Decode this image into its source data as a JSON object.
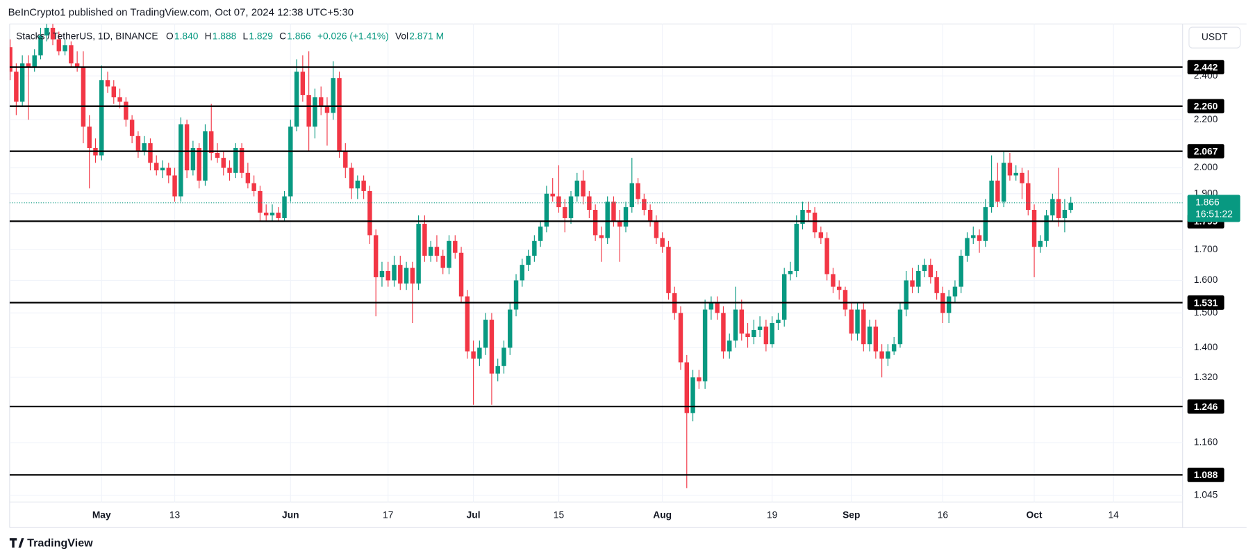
{
  "header": {
    "published": "BeInCrypto1 published on TradingView.com, Oct 07, 2024 12:38 UTC+5:30",
    "footer_brand": "TradingView",
    "currency_button": "USDT"
  },
  "chart_data": {
    "type": "candlestick",
    "symbol": "Stacks / TetherUS, 1D, BINANCE",
    "ohlc_legend": [
      {
        "key": "O",
        "text": "1.840"
      },
      {
        "key": "H",
        "text": "1.888"
      },
      {
        "key": "L",
        "text": "1.829"
      },
      {
        "key": "C",
        "text": "1.866"
      },
      {
        "key": "",
        "text": "+0.026 (+1.41%)"
      },
      {
        "key": "Vol",
        "text": "2.871 M"
      }
    ],
    "up_color": "#089981",
    "down_color": "#f23645",
    "log_scale": true,
    "grid": true,
    "xlim": [
      "2024-04-15",
      "2024-10-26"
    ],
    "xticks": [
      {
        "value": "2024-05-01",
        "label": "May"
      },
      {
        "value": "2024-05-13",
        "label": "13"
      },
      {
        "value": "2024-06-01",
        "label": "Jun"
      },
      {
        "value": "2024-06-17",
        "label": "17"
      },
      {
        "value": "2024-07-01",
        "label": "Jul"
      },
      {
        "value": "2024-07-15",
        "label": "15"
      },
      {
        "value": "2024-08-01",
        "label": "Aug"
      },
      {
        "value": "2024-08-19",
        "label": "19"
      },
      {
        "value": "2024-09-01",
        "label": "Sep"
      },
      {
        "value": "2024-09-16",
        "label": "16"
      },
      {
        "value": "2024-10-01",
        "label": "Oct"
      },
      {
        "value": "2024-10-14",
        "label": "14"
      }
    ],
    "ylim": [
      1.031,
      2.66
    ],
    "yticks": [
      1.045,
      {
        "value": 1.16,
        "label": "1.160"
      },
      {
        "value": 1.32,
        "label": "1.320"
      },
      {
        "value": 1.4,
        "label": "1.400"
      },
      {
        "value": 1.5,
        "label": "1.500"
      },
      {
        "value": 1.6,
        "label": "1.600"
      },
      {
        "value": 1.7,
        "label": "1.700"
      },
      {
        "value": 1.9,
        "label": "1.900"
      },
      {
        "value": 2,
        "label": "2.000"
      },
      {
        "value": 2.2,
        "label": "2.200"
      },
      {
        "value": 2.4,
        "label": "2.400"
      }
    ],
    "levels": [
      2.442,
      {
        "value": 2.26,
        "label": "2.260"
      },
      2.067,
      1.799,
      1.531,
      1.246,
      1.088
    ],
    "last_price": 1.866,
    "countdown": "16:51:22",
    "x": [
      "2024-04-16",
      "2024-04-17",
      "2024-04-18",
      "2024-04-19",
      "2024-04-20",
      "2024-04-21",
      "2024-04-22",
      "2024-04-23",
      "2024-04-24",
      "2024-04-25",
      "2024-04-26",
      "2024-04-27",
      "2024-04-28",
      "2024-04-29",
      "2024-04-30",
      "2024-05-01",
      "2024-05-02",
      "2024-05-03",
      "2024-05-04",
      "2024-05-05",
      "2024-05-06",
      "2024-05-07",
      "2024-05-08",
      "2024-05-09",
      "2024-05-10",
      "2024-05-11",
      "2024-05-12",
      "2024-05-13",
      "2024-05-14",
      "2024-05-15",
      "2024-05-16",
      "2024-05-17",
      "2024-05-18",
      "2024-05-19",
      "2024-05-20",
      "2024-05-21",
      "2024-05-22",
      "2024-05-23",
      "2024-05-24",
      "2024-05-25",
      "2024-05-26",
      "2024-05-27",
      "2024-05-28",
      "2024-05-29",
      "2024-05-30",
      "2024-05-31",
      "2024-06-01",
      "2024-06-02",
      "2024-06-03",
      "2024-06-04",
      "2024-06-05",
      "2024-06-06",
      "2024-06-07",
      "2024-06-08",
      "2024-06-09",
      "2024-06-10",
      "2024-06-11",
      "2024-06-12",
      "2024-06-13",
      "2024-06-14",
      "2024-06-15",
      "2024-06-16",
      "2024-06-17",
      "2024-06-18",
      "2024-06-19",
      "2024-06-20",
      "2024-06-21",
      "2024-06-22",
      "2024-06-23",
      "2024-06-24",
      "2024-06-25",
      "2024-06-26",
      "2024-06-27",
      "2024-06-28",
      "2024-06-29",
      "2024-06-30",
      "2024-07-01",
      "2024-07-02",
      "2024-07-03",
      "2024-07-04",
      "2024-07-05",
      "2024-07-06",
      "2024-07-07",
      "2024-07-08",
      "2024-07-09",
      "2024-07-10",
      "2024-07-11",
      "2024-07-12",
      "2024-07-13",
      "2024-07-14",
      "2024-07-15",
      "2024-07-16",
      "2024-07-17",
      "2024-07-18",
      "2024-07-19",
      "2024-07-20",
      "2024-07-21",
      "2024-07-22",
      "2024-07-23",
      "2024-07-24",
      "2024-07-25",
      "2024-07-26",
      "2024-07-27",
      "2024-07-28",
      "2024-07-29",
      "2024-07-30",
      "2024-07-31",
      "2024-08-01",
      "2024-08-02",
      "2024-08-03",
      "2024-08-04",
      "2024-08-05",
      "2024-08-06",
      "2024-08-07",
      "2024-08-08",
      "2024-08-09",
      "2024-08-10",
      "2024-08-11",
      "2024-08-12",
      "2024-08-13",
      "2024-08-14",
      "2024-08-15",
      "2024-08-16",
      "2024-08-17",
      "2024-08-18",
      "2024-08-19",
      "2024-08-20",
      "2024-08-21",
      "2024-08-22",
      "2024-08-23",
      "2024-08-24",
      "2024-08-25",
      "2024-08-26",
      "2024-08-27",
      "2024-08-28",
      "2024-08-29",
      "2024-08-30",
      "2024-08-31",
      "2024-09-01",
      "2024-09-02",
      "2024-09-03",
      "2024-09-04",
      "2024-09-05",
      "2024-09-06",
      "2024-09-07",
      "2024-09-08",
      "2024-09-09",
      "2024-09-10",
      "2024-09-11",
      "2024-09-12",
      "2024-09-13",
      "2024-09-14",
      "2024-09-15",
      "2024-09-16",
      "2024-09-17",
      "2024-09-18",
      "2024-09-19",
      "2024-09-20",
      "2024-09-21",
      "2024-09-22",
      "2024-09-23",
      "2024-09-24",
      "2024-09-25",
      "2024-09-26",
      "2024-09-27",
      "2024-09-28",
      "2024-09-29",
      "2024-09-30",
      "2024-10-01",
      "2024-10-02",
      "2024-10-03",
      "2024-10-04",
      "2024-10-05",
      "2024-10-06",
      "2024-10-07"
    ],
    "ohlc": [
      [
        2.54,
        2.58,
        2.38,
        2.42
      ],
      [
        2.42,
        2.46,
        2.22,
        2.28
      ],
      [
        2.28,
        2.5,
        2.26,
        2.46
      ],
      [
        2.46,
        2.5,
        2.2,
        2.44
      ],
      [
        2.44,
        2.53,
        2.42,
        2.5
      ],
      [
        2.5,
        2.64,
        2.48,
        2.6
      ],
      [
        2.6,
        2.66,
        2.57,
        2.64
      ],
      [
        2.64,
        2.66,
        2.55,
        2.58
      ],
      [
        2.58,
        2.62,
        2.5,
        2.52
      ],
      [
        2.52,
        2.58,
        2.5,
        2.55
      ],
      [
        2.55,
        2.57,
        2.44,
        2.46
      ],
      [
        2.46,
        2.52,
        2.42,
        2.44
      ],
      [
        2.44,
        2.52,
        2.1,
        2.17
      ],
      [
        2.17,
        2.22,
        1.92,
        2.08
      ],
      [
        2.08,
        2.12,
        2.02,
        2.05
      ],
      [
        2.05,
        2.45,
        2.03,
        2.38
      ],
      [
        2.38,
        2.42,
        2.32,
        2.35
      ],
      [
        2.35,
        2.38,
        2.27,
        2.3
      ],
      [
        2.3,
        2.34,
        2.25,
        2.28
      ],
      [
        2.28,
        2.3,
        2.17,
        2.2
      ],
      [
        2.2,
        2.22,
        2.1,
        2.13
      ],
      [
        2.13,
        2.15,
        2.04,
        2.07
      ],
      [
        2.07,
        2.13,
        2.05,
        2.1
      ],
      [
        2.1,
        2.12,
        1.99,
        2.02
      ],
      [
        2.02,
        2.05,
        1.97,
        1.99
      ],
      [
        1.99,
        2.03,
        1.96,
        2.0
      ],
      [
        2.0,
        2.02,
        1.94,
        1.97
      ],
      [
        1.97,
        2.0,
        1.87,
        1.89
      ],
      [
        1.89,
        2.21,
        1.87,
        2.18
      ],
      [
        2.18,
        2.2,
        1.96,
        1.99
      ],
      [
        1.99,
        2.11,
        1.97,
        2.08
      ],
      [
        2.08,
        2.1,
        1.92,
        1.95
      ],
      [
        1.95,
        2.18,
        1.93,
        2.15
      ],
      [
        2.15,
        2.27,
        2.03,
        2.06
      ],
      [
        2.06,
        2.1,
        2.02,
        2.04
      ],
      [
        2.04,
        2.07,
        1.97,
        2.0
      ],
      [
        2.0,
        2.03,
        1.95,
        1.98
      ],
      [
        1.98,
        2.1,
        1.96,
        2.08
      ],
      [
        2.08,
        2.1,
        1.96,
        1.98
      ],
      [
        1.98,
        2.02,
        1.92,
        1.94
      ],
      [
        1.94,
        1.97,
        1.89,
        1.91
      ],
      [
        1.91,
        1.93,
        1.8,
        1.83
      ],
      [
        1.83,
        1.86,
        1.8,
        1.82
      ],
      [
        1.82,
        1.86,
        1.8,
        1.83
      ],
      [
        1.83,
        1.85,
        1.8,
        1.81
      ],
      [
        1.81,
        1.91,
        1.8,
        1.89
      ],
      [
        1.89,
        2.2,
        1.87,
        2.17
      ],
      [
        2.17,
        2.48,
        2.15,
        2.42
      ],
      [
        2.42,
        2.5,
        2.28,
        2.31
      ],
      [
        2.31,
        2.52,
        2.07,
        2.17
      ],
      [
        2.17,
        2.34,
        2.12,
        2.3
      ],
      [
        2.3,
        2.35,
        2.22,
        2.26
      ],
      [
        2.26,
        2.3,
        2.09,
        2.23
      ],
      [
        2.23,
        2.47,
        2.2,
        2.39
      ],
      [
        2.39,
        2.42,
        2.04,
        2.07
      ],
      [
        2.07,
        2.1,
        1.96,
        2.0
      ],
      [
        2.0,
        2.02,
        1.88,
        1.92
      ],
      [
        1.92,
        1.97,
        1.88,
        1.95
      ],
      [
        1.95,
        1.97,
        1.88,
        1.91
      ],
      [
        1.91,
        1.93,
        1.72,
        1.75
      ],
      [
        1.75,
        1.77,
        1.49,
        1.61
      ],
      [
        1.61,
        1.66,
        1.58,
        1.63
      ],
      [
        1.63,
        1.66,
        1.58,
        1.6
      ],
      [
        1.6,
        1.68,
        1.58,
        1.65
      ],
      [
        1.65,
        1.68,
        1.57,
        1.59
      ],
      [
        1.59,
        1.66,
        1.57,
        1.64
      ],
      [
        1.64,
        1.66,
        1.47,
        1.59
      ],
      [
        1.59,
        1.82,
        1.57,
        1.79
      ],
      [
        1.79,
        1.82,
        1.66,
        1.68
      ],
      [
        1.68,
        1.73,
        1.66,
        1.71
      ],
      [
        1.71,
        1.75,
        1.66,
        1.68
      ],
      [
        1.68,
        1.7,
        1.62,
        1.64
      ],
      [
        1.64,
        1.75,
        1.62,
        1.73
      ],
      [
        1.73,
        1.75,
        1.67,
        1.69
      ],
      [
        1.69,
        1.71,
        1.53,
        1.55
      ],
      [
        1.55,
        1.57,
        1.37,
        1.39
      ],
      [
        1.39,
        1.42,
        1.25,
        1.37
      ],
      [
        1.37,
        1.42,
        1.35,
        1.4
      ],
      [
        1.4,
        1.5,
        1.38,
        1.48
      ],
      [
        1.48,
        1.5,
        1.25,
        1.33
      ],
      [
        1.33,
        1.37,
        1.31,
        1.35
      ],
      [
        1.35,
        1.42,
        1.33,
        1.4
      ],
      [
        1.4,
        1.53,
        1.38,
        1.51
      ],
      [
        1.51,
        1.62,
        1.49,
        1.6
      ],
      [
        1.6,
        1.67,
        1.58,
        1.65
      ],
      [
        1.65,
        1.7,
        1.63,
        1.68
      ],
      [
        1.68,
        1.75,
        1.66,
        1.73
      ],
      [
        1.73,
        1.8,
        1.71,
        1.78
      ],
      [
        1.78,
        1.93,
        1.76,
        1.9
      ],
      [
        1.9,
        1.96,
        1.87,
        1.89
      ],
      [
        1.89,
        2.01,
        1.83,
        1.85
      ],
      [
        1.85,
        1.88,
        1.76,
        1.81
      ],
      [
        1.81,
        1.91,
        1.79,
        1.89
      ],
      [
        1.89,
        1.98,
        1.87,
        1.95
      ],
      [
        1.95,
        1.99,
        1.86,
        1.89
      ],
      [
        1.89,
        1.91,
        1.81,
        1.84
      ],
      [
        1.84,
        1.86,
        1.73,
        1.75
      ],
      [
        1.75,
        1.78,
        1.66,
        1.74
      ],
      [
        1.74,
        1.89,
        1.72,
        1.87
      ],
      [
        1.87,
        1.89,
        1.78,
        1.8
      ],
      [
        1.8,
        1.84,
        1.66,
        1.78
      ],
      [
        1.78,
        1.87,
        1.76,
        1.85
      ],
      [
        1.85,
        2.04,
        1.83,
        1.94
      ],
      [
        1.94,
        1.96,
        1.86,
        1.88
      ],
      [
        1.88,
        1.9,
        1.82,
        1.84
      ],
      [
        1.84,
        1.86,
        1.78,
        1.8
      ],
      [
        1.8,
        1.82,
        1.72,
        1.74
      ],
      [
        1.74,
        1.76,
        1.69,
        1.71
      ],
      [
        1.71,
        1.73,
        1.54,
        1.56
      ],
      [
        1.56,
        1.58,
        1.48,
        1.5
      ],
      [
        1.5,
        1.52,
        1.34,
        1.36
      ],
      [
        1.36,
        1.38,
        1.06,
        1.23
      ],
      [
        1.23,
        1.34,
        1.21,
        1.32
      ],
      [
        1.32,
        1.34,
        1.29,
        1.31
      ],
      [
        1.31,
        1.54,
        1.29,
        1.51
      ],
      [
        1.51,
        1.55,
        1.48,
        1.53
      ],
      [
        1.53,
        1.55,
        1.48,
        1.5
      ],
      [
        1.5,
        1.52,
        1.37,
        1.39
      ],
      [
        1.39,
        1.44,
        1.37,
        1.42
      ],
      [
        1.42,
        1.58,
        1.4,
        1.51
      ],
      [
        1.51,
        1.54,
        1.42,
        1.44
      ],
      [
        1.44,
        1.47,
        1.4,
        1.43
      ],
      [
        1.43,
        1.48,
        1.41,
        1.45
      ],
      [
        1.45,
        1.49,
        1.43,
        1.46
      ],
      [
        1.46,
        1.48,
        1.39,
        1.41
      ],
      [
        1.41,
        1.49,
        1.4,
        1.47
      ],
      [
        1.47,
        1.5,
        1.45,
        1.48
      ],
      [
        1.48,
        1.64,
        1.46,
        1.62
      ],
      [
        1.62,
        1.66,
        1.6,
        1.63
      ],
      [
        1.63,
        1.82,
        1.61,
        1.79
      ],
      [
        1.79,
        1.87,
        1.77,
        1.84
      ],
      [
        1.84,
        1.87,
        1.8,
        1.83
      ],
      [
        1.83,
        1.85,
        1.74,
        1.76
      ],
      [
        1.76,
        1.78,
        1.72,
        1.74
      ],
      [
        1.74,
        1.76,
        1.6,
        1.62
      ],
      [
        1.62,
        1.64,
        1.56,
        1.58
      ],
      [
        1.58,
        1.6,
        1.54,
        1.57
      ],
      [
        1.57,
        1.58,
        1.49,
        1.51
      ],
      [
        1.51,
        1.53,
        1.42,
        1.44
      ],
      [
        1.44,
        1.53,
        1.42,
        1.51
      ],
      [
        1.51,
        1.53,
        1.39,
        1.41
      ],
      [
        1.41,
        1.48,
        1.39,
        1.46
      ],
      [
        1.46,
        1.48,
        1.37,
        1.39
      ],
      [
        1.39,
        1.41,
        1.32,
        1.37
      ],
      [
        1.37,
        1.41,
        1.35,
        1.39
      ],
      [
        1.39,
        1.43,
        1.38,
        1.41
      ],
      [
        1.41,
        1.53,
        1.4,
        1.51
      ],
      [
        1.51,
        1.63,
        1.49,
        1.6
      ],
      [
        1.6,
        1.64,
        1.56,
        1.58
      ],
      [
        1.58,
        1.65,
        1.56,
        1.63
      ],
      [
        1.63,
        1.67,
        1.61,
        1.65
      ],
      [
        1.65,
        1.67,
        1.59,
        1.61
      ],
      [
        1.61,
        1.63,
        1.54,
        1.56
      ],
      [
        1.56,
        1.58,
        1.47,
        1.5
      ],
      [
        1.5,
        1.57,
        1.47,
        1.55
      ],
      [
        1.55,
        1.6,
        1.53,
        1.58
      ],
      [
        1.58,
        1.7,
        1.56,
        1.68
      ],
      [
        1.68,
        1.76,
        1.66,
        1.74
      ],
      [
        1.74,
        1.78,
        1.72,
        1.75
      ],
      [
        1.75,
        1.77,
        1.69,
        1.73
      ],
      [
        1.73,
        1.88,
        1.71,
        1.85
      ],
      [
        1.85,
        2.05,
        1.83,
        1.95
      ],
      [
        1.95,
        2.02,
        1.85,
        1.87
      ],
      [
        1.87,
        2.07,
        1.85,
        2.02
      ],
      [
        2.02,
        2.06,
        1.95,
        1.97
      ],
      [
        1.97,
        2.01,
        1.95,
        1.98
      ],
      [
        1.98,
        2.0,
        1.88,
        1.94
      ],
      [
        1.94,
        1.99,
        1.82,
        1.84
      ],
      [
        1.84,
        1.86,
        1.61,
        1.71
      ],
      [
        1.71,
        1.75,
        1.69,
        1.73
      ],
      [
        1.73,
        1.84,
        1.71,
        1.82
      ],
      [
        1.82,
        1.9,
        1.8,
        1.88
      ],
      [
        1.88,
        2.0,
        1.78,
        1.81
      ],
      [
        1.81,
        1.88,
        1.76,
        1.84
      ],
      [
        1.84,
        1.888,
        1.829,
        1.866
      ]
    ]
  }
}
